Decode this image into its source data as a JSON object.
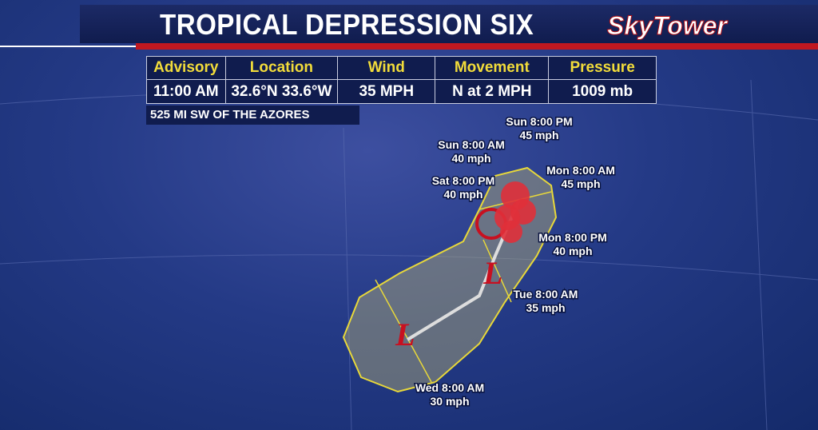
{
  "header": {
    "title": "TROPICAL DEPRESSION SIX",
    "logo": "SkyTower"
  },
  "table": {
    "headers": [
      "Advisory",
      "Location",
      "Wind",
      "Movement",
      "Pressure"
    ],
    "values": [
      "11:00 AM",
      "32.6°N  33.6°W",
      "35 MPH",
      "N at 2 MPH",
      "1009 mb"
    ]
  },
  "subtitle": "525 MI SW OF THE AZORES",
  "forecast": [
    {
      "time": "Sun 8:00 PM",
      "wind": "45 mph"
    },
    {
      "time": "Sun 8:00 AM",
      "wind": "40 mph"
    },
    {
      "time": "Sat 8:00 PM",
      "wind": "40 mph"
    },
    {
      "time": "Mon 8:00 AM",
      "wind": "45 mph"
    },
    {
      "time": "Mon 8:00 PM",
      "wind": "40 mph"
    },
    {
      "time": "Tue 8:00 AM",
      "wind": "35 mph"
    },
    {
      "time": "Wed 8:00 AM",
      "wind": "30 mph"
    }
  ]
}
